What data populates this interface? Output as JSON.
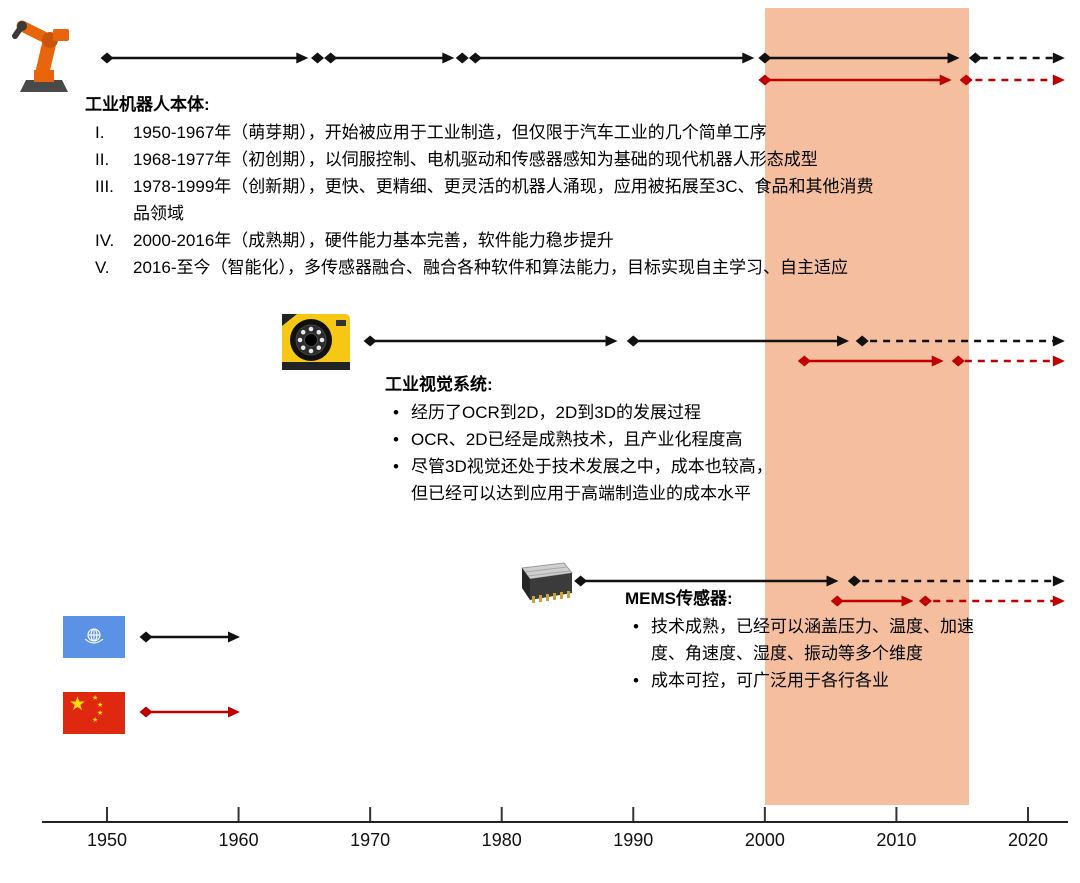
{
  "sections": {
    "robot": {
      "title": "工业机器人本体:",
      "items": [
        {
          "marker": "I.",
          "text": "1950-1967年（萌芽期），开始被应用于工业制造，但仅限于汽车工业的几个简单工序"
        },
        {
          "marker": "II.",
          "text": "1968-1977年（初创期），以伺服控制、电机驱动和传感器感知为基础的现代机器人形态成型"
        },
        {
          "marker": "III.",
          "text": "1978-1999年（创新期），更快、更精细、更灵活的机器人涌现，应用被拓展至3C、食品和其他消费品领域"
        },
        {
          "marker": "IV.",
          "text": "2000-2016年（成熟期），硬件能力基本完善，软件能力稳步提升"
        },
        {
          "marker": "V.",
          "text": "2016-至今（智能化），多传感器融合、融合各种软件和算法能力，目标实现自主学习、自主适应"
        }
      ]
    },
    "vision": {
      "title": "工业视觉系统:",
      "items": [
        {
          "marker": "•",
          "text": "经历了OCR到2D，2D到3D的发展过程"
        },
        {
          "marker": "•",
          "text": "OCR、2D已经是成熟技术，且产业化程度高"
        },
        {
          "marker": "•",
          "text": "尽管3D视觉还处于技术发展之中，成本也较高，但已经可以达到应用于高端制造业的成本水平"
        }
      ]
    },
    "mems": {
      "title": "MEMS传感器:",
      "items": [
        {
          "marker": "•",
          "text": "技术成熟，已经可以涵盖压力、温度、加速度、角速度、湿度、振动等多个维度"
        },
        {
          "marker": "•",
          "text": "成本可控，可广泛用于各行各业"
        }
      ]
    }
  },
  "chart_data": {
    "type": "timeline",
    "axis": {
      "start_year": 1950,
      "end_year": 2023,
      "ticks": [
        1950,
        1960,
        1970,
        1980,
        1990,
        2000,
        2010,
        2020
      ]
    },
    "highlight_band": {
      "from_year": 2000,
      "to_year": 2015.5,
      "color": "#f0a87f"
    },
    "colors": {
      "global": "#111111",
      "china": "#c00000"
    },
    "legend_rows": [
      {
        "id": "legend-global",
        "series": "global",
        "flag": "un"
      },
      {
        "id": "legend-china",
        "series": "china",
        "flag": "china"
      }
    ],
    "timelines": [
      {
        "id": "robot-global",
        "series": "global",
        "label": "industrial-robot-world",
        "segments": [
          {
            "from": 1950,
            "to": 1965.3,
            "style": "solid",
            "arrow": true
          },
          {
            "from": 1967,
            "to": 1976.4,
            "style": "solid",
            "arrow": true
          },
          {
            "from": 1978,
            "to": 1999.2,
            "style": "solid",
            "arrow": true
          },
          {
            "from": 2000,
            "to": 2014.8,
            "style": "solid",
            "arrow": true
          },
          {
            "from": 2016.4,
            "to": 2022.8,
            "style": "dashed",
            "arrow": true
          }
        ],
        "diamonds": [
          1950,
          1966,
          1967,
          1977,
          1978,
          2000,
          2016
        ]
      },
      {
        "id": "robot-china",
        "series": "china",
        "label": "industrial-robot-china",
        "segments": [
          {
            "from": 2000,
            "to": 2014.2,
            "style": "solid",
            "arrow": true
          },
          {
            "from": 2016,
            "to": 2022.8,
            "style": "dashed",
            "arrow": true
          }
        ],
        "diamonds": [
          2000,
          2015.3
        ]
      },
      {
        "id": "vision-global",
        "series": "global",
        "label": "machine-vision-world",
        "segments": [
          {
            "from": 1970,
            "to": 1988.8,
            "style": "solid",
            "arrow": true
          },
          {
            "from": 1990.4,
            "to": 2006.4,
            "style": "solid",
            "arrow": true
          },
          {
            "from": 2008,
            "to": 2022.8,
            "style": "dashed",
            "arrow": true
          }
        ],
        "diamonds": [
          1970,
          1990,
          2007.4
        ]
      },
      {
        "id": "vision-china",
        "series": "china",
        "label": "machine-vision-china",
        "segments": [
          {
            "from": 2003,
            "to": 2013.6,
            "style": "solid",
            "arrow": true
          },
          {
            "from": 2015.2,
            "to": 2022.8,
            "style": "dashed",
            "arrow": true
          }
        ],
        "diamonds": [
          2003,
          2014.7
        ]
      },
      {
        "id": "mems-global",
        "series": "global",
        "label": "mems-sensor-world",
        "segments": [
          {
            "from": 1986,
            "to": 2005.6,
            "style": "solid",
            "arrow": true
          },
          {
            "from": 2007.4,
            "to": 2022.8,
            "style": "dashed",
            "arrow": true
          }
        ],
        "diamonds": [
          1986,
          2006.8
        ]
      },
      {
        "id": "mems-china",
        "series": "china",
        "label": "mems-sensor-china",
        "segments": [
          {
            "from": 2005.5,
            "to": 2011.3,
            "style": "solid",
            "arrow": true
          },
          {
            "from": 2012.8,
            "to": 2022.8,
            "style": "dashed",
            "arrow": true
          }
        ],
        "diamonds": [
          2005.5,
          2012.2
        ]
      }
    ]
  }
}
